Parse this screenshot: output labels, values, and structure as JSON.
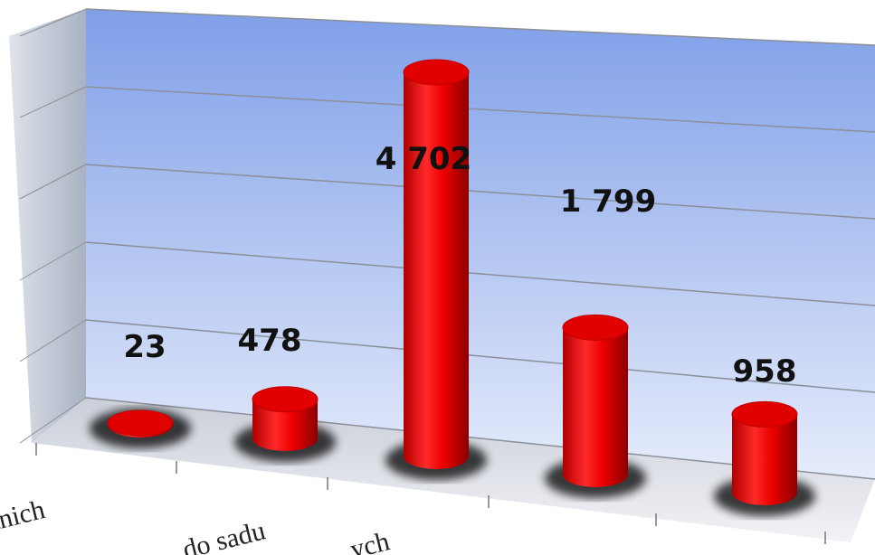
{
  "chart_data": {
    "type": "bar",
    "categories": [
      "etnich",
      "do sadu",
      "ych",
      null,
      null
    ],
    "values": [
      23,
      478,
      4702,
      1799,
      958
    ],
    "value_labels": [
      "23",
      "478",
      "4 702",
      "1 799",
      "958"
    ],
    "color": "#ee0000",
    "ylim": [
      0,
      5000
    ],
    "yticks": [
      0,
      1000,
      2000,
      3000,
      4000,
      5000
    ],
    "grid": true
  }
}
